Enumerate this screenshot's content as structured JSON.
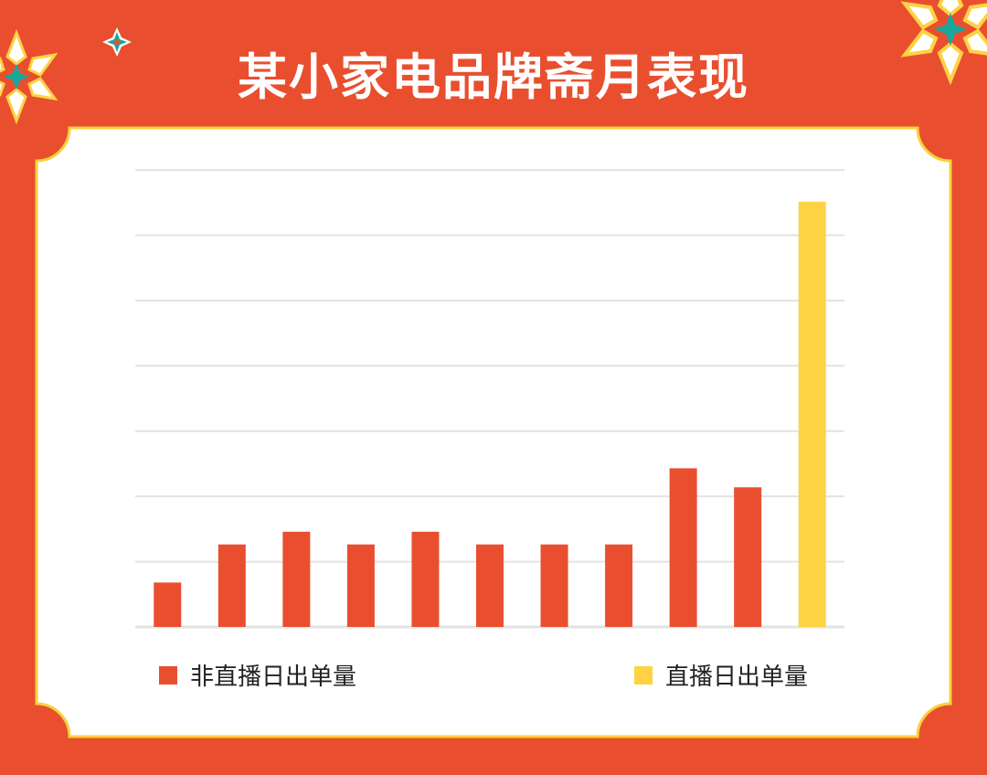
{
  "page": {
    "title": "某小家电品牌斋月表现"
  },
  "colors": {
    "background": "#e94f2f",
    "panel": "#ffffff",
    "panel_border": "#f7d23a",
    "bar_normal": "#e94f2f",
    "bar_live": "#fdd343",
    "grid": "#e3e3e3"
  },
  "chart_data": {
    "type": "bar",
    "title": "某小家电品牌斋月表现",
    "xlabel": "",
    "ylabel": "",
    "categories": [
      "",
      "",
      "",
      "",
      "",
      "",
      "",
      "",
      "",
      "",
      ""
    ],
    "series": [
      {
        "name": "非直播日出单量",
        "values": [
          0.7,
          1.3,
          1.5,
          1.3,
          1.5,
          1.3,
          1.3,
          1.3,
          2.5,
          2.2,
          0
        ]
      },
      {
        "name": "直播日出单量",
        "values": [
          0,
          0,
          0,
          0,
          0,
          0,
          0,
          0,
          0,
          0,
          6.7
        ]
      }
    ],
    "ylim": [
      0,
      7.2
    ],
    "grid": true,
    "legend_position": "bottom"
  }
}
